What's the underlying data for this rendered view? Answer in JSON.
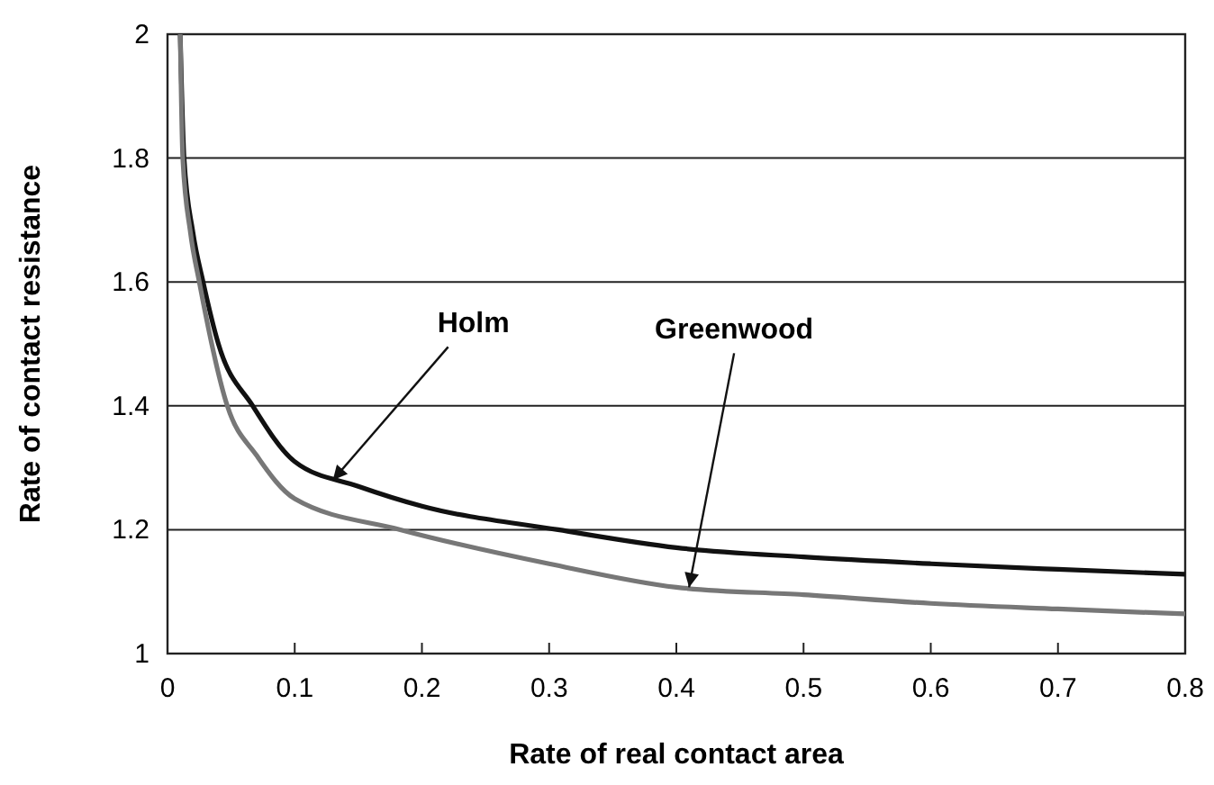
{
  "chart_data": {
    "type": "line",
    "xlabel": "Rate of real contact area",
    "ylabel": "Rate of contact resistance",
    "xlim": [
      0,
      0.8
    ],
    "ylim": [
      1,
      2
    ],
    "xticks": [
      0,
      0.1,
      0.2,
      0.3,
      0.4,
      0.5,
      0.6,
      0.7,
      0.8
    ],
    "yticks": [
      1,
      1.2,
      1.4,
      1.6,
      1.8,
      2
    ],
    "grid": "y",
    "series": [
      {
        "color": "#111111",
        "x": [
          0.01,
          0.013,
          0.02,
          0.028,
          0.04,
          0.067,
          0.1,
          0.15,
          0.2,
          0.307,
          0.4,
          0.5,
          0.6,
          0.7,
          0.8
        ],
        "values": [
          2,
          1.8,
          1.68,
          1.6,
          1.5,
          1.4,
          1.31,
          1.27,
          1.238,
          1.2,
          1.171,
          1.156,
          1.145,
          1.136,
          1.128
        ]
      },
      {
        "color": "#777777",
        "x": [
          0.01,
          0.012,
          0.018,
          0.025,
          0.047,
          0.07,
          0.1,
          0.183,
          0.3,
          0.4,
          0.5,
          0.6,
          0.7,
          0.8
        ],
        "values": [
          2,
          1.8,
          1.68,
          1.6,
          1.4,
          1.32,
          1.25,
          1.2,
          1.145,
          1.107,
          1.095,
          1.081,
          1.072,
          1.064
        ]
      }
    ],
    "annotations": [
      {
        "text": "Holm",
        "x": 0.13,
        "y": 1.28
      },
      {
        "text": "Greenwood",
        "x": 0.41,
        "y": 1.107
      }
    ]
  }
}
